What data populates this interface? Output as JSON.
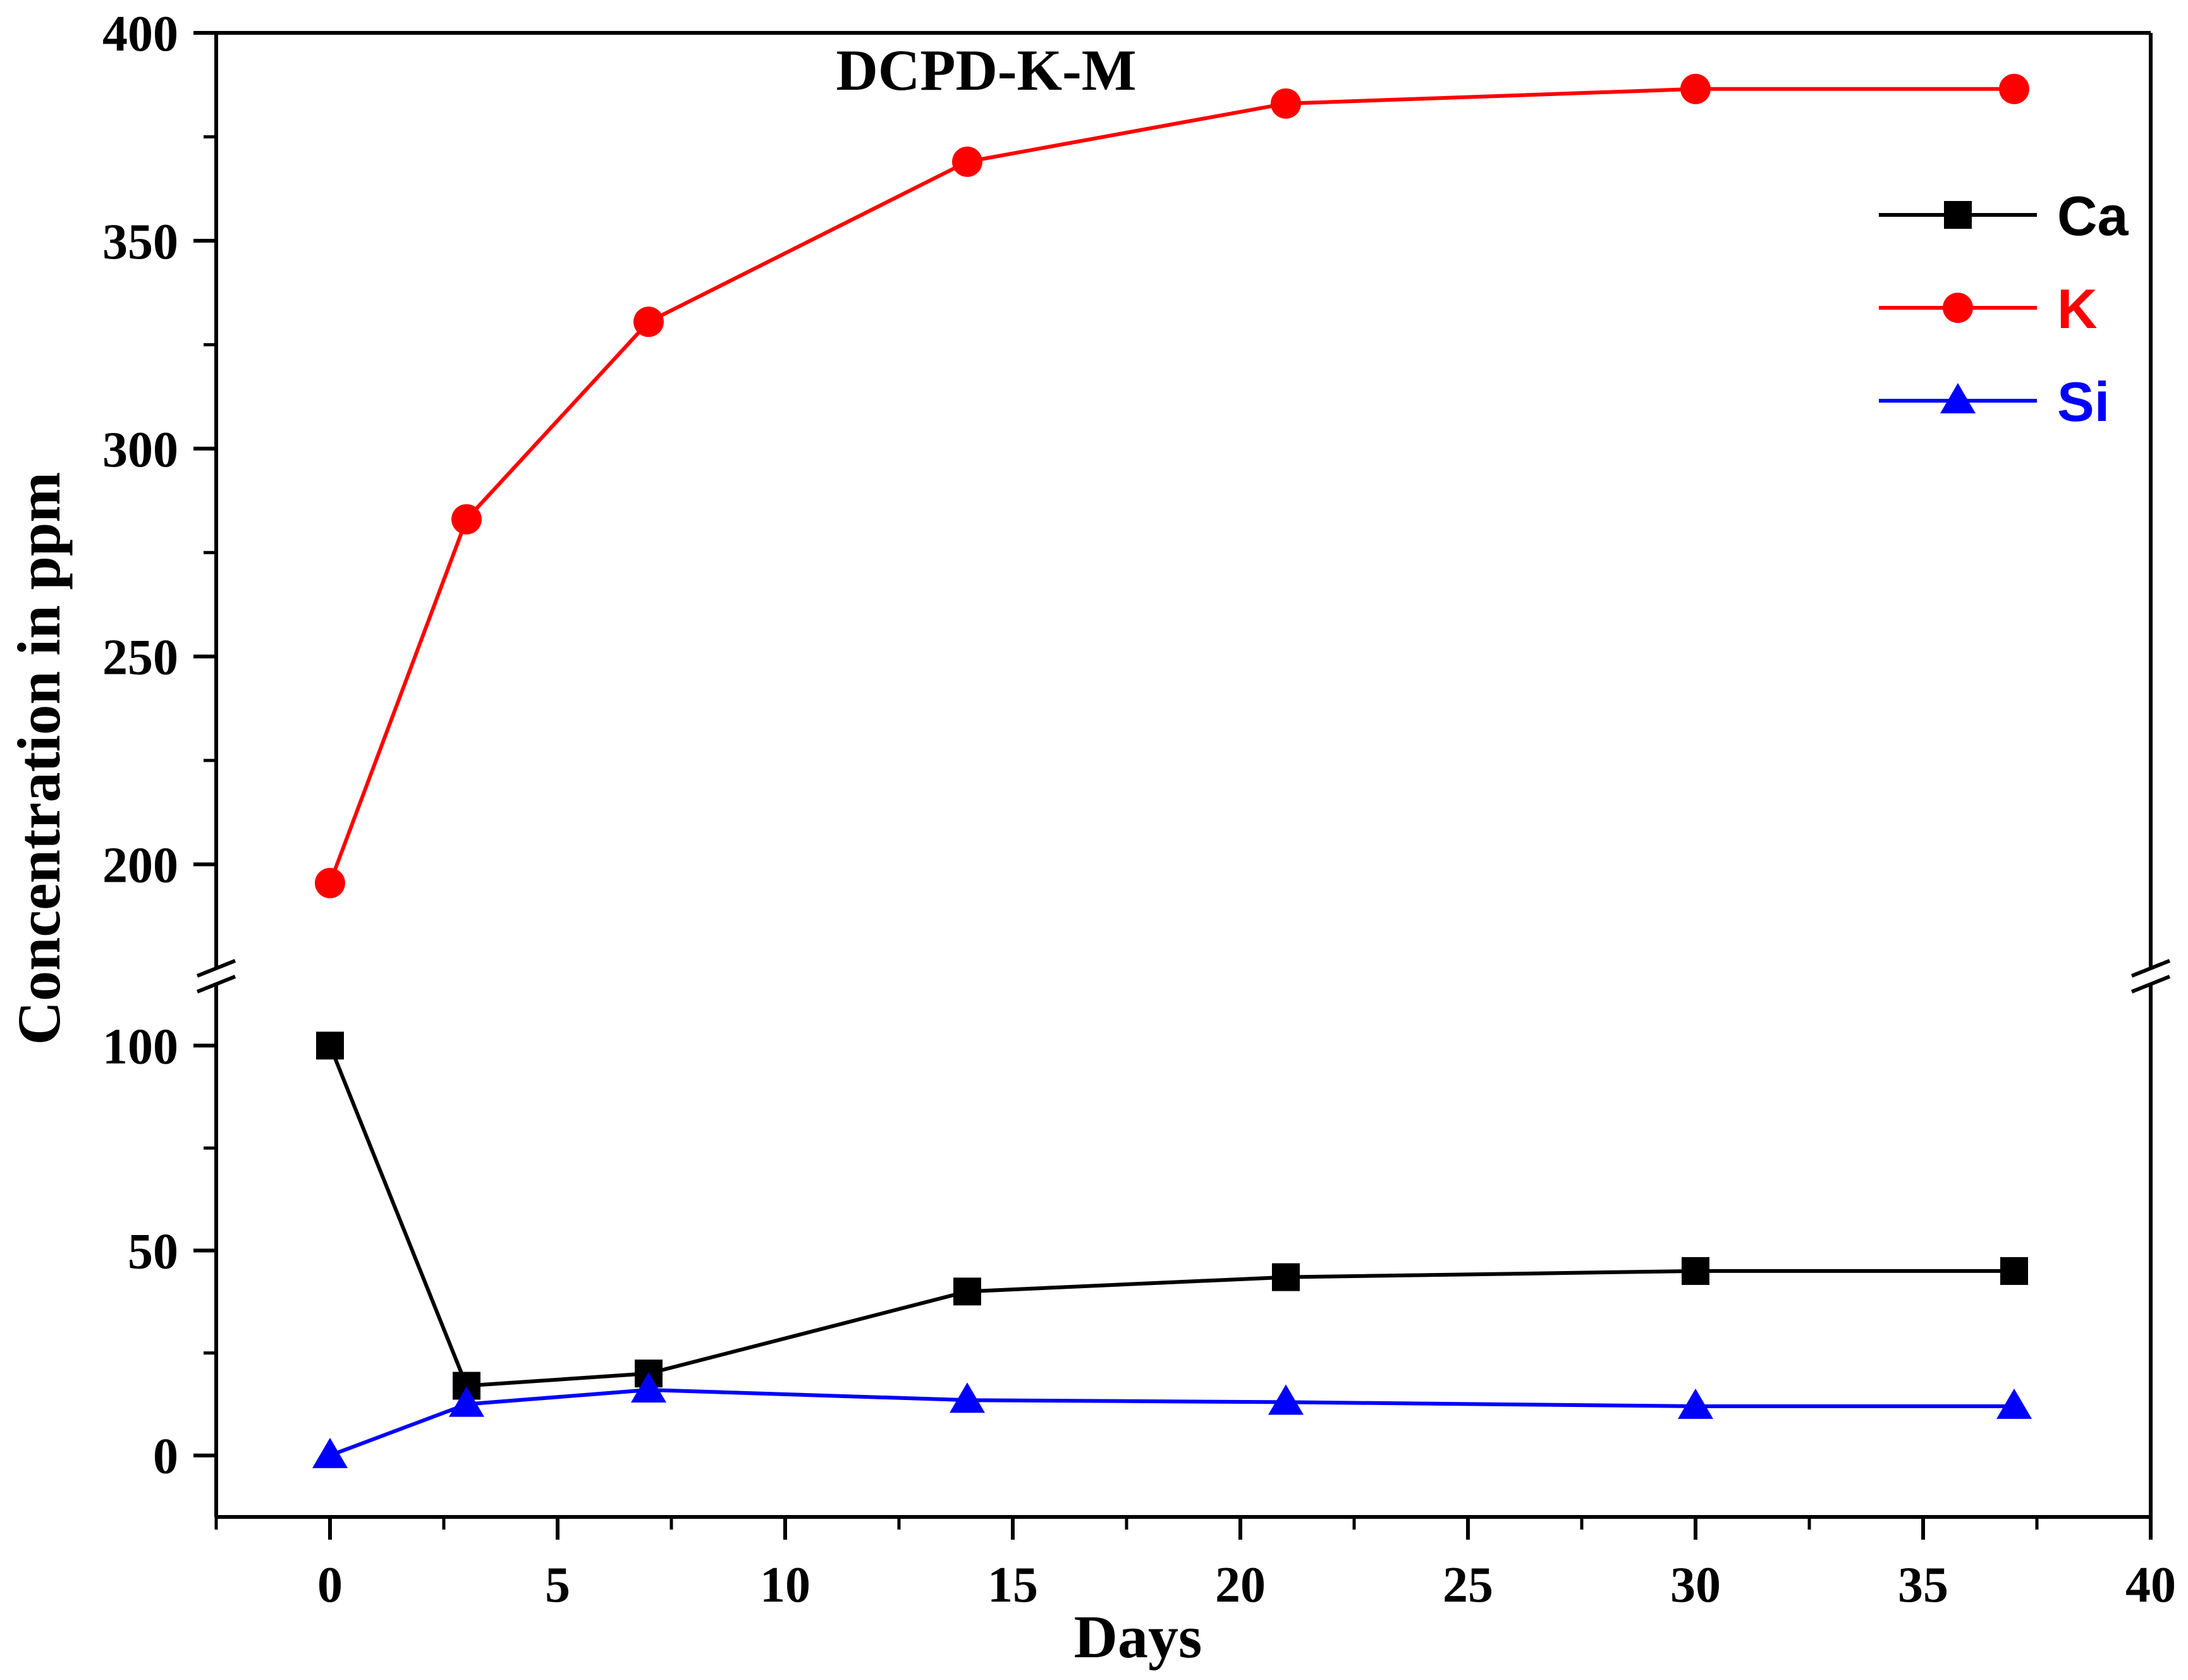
{
  "chart_data": {
    "type": "line",
    "title": "DCPD-K-M",
    "xlabel": "Days",
    "ylabel": "Concentration in ppm",
    "xlim": [
      -2.5,
      40
    ],
    "x_ticks": [
      0,
      5,
      10,
      15,
      20,
      25,
      30,
      35,
      40
    ],
    "x_tick_labels": [
      "0",
      "5",
      "10",
      "15",
      "20",
      "25",
      "30",
      "35",
      "40"
    ],
    "y_break": {
      "lower_range": [
        -15,
        115
      ],
      "upper_range": [
        175,
        400
      ]
    },
    "y_ticks_lower": [
      0,
      50,
      100
    ],
    "y_tick_labels_lower": [
      "0",
      "50",
      "100"
    ],
    "y_ticks_upper": [
      200,
      250,
      300,
      350,
      400
    ],
    "y_tick_labels_upper": [
      "200",
      "250",
      "300",
      "350",
      "400"
    ],
    "x": [
      0,
      3,
      7,
      14,
      21,
      30,
      37
    ],
    "series": [
      {
        "name": "Ca",
        "color": "#000000",
        "marker": "square",
        "values": [
          100,
          17,
          20,
          40,
          43.5,
          45,
          45
        ]
      },
      {
        "name": "K",
        "color": "#ff0000",
        "marker": "circle",
        "values": [
          195.5,
          283,
          330.5,
          369,
          383,
          386.5,
          386.5
        ]
      },
      {
        "name": "Si",
        "color": "#0000ff",
        "marker": "triangle",
        "values": [
          0,
          12.5,
          16,
          13.5,
          13,
          12,
          12
        ]
      }
    ],
    "legend_position": "top-right",
    "grid": false
  }
}
